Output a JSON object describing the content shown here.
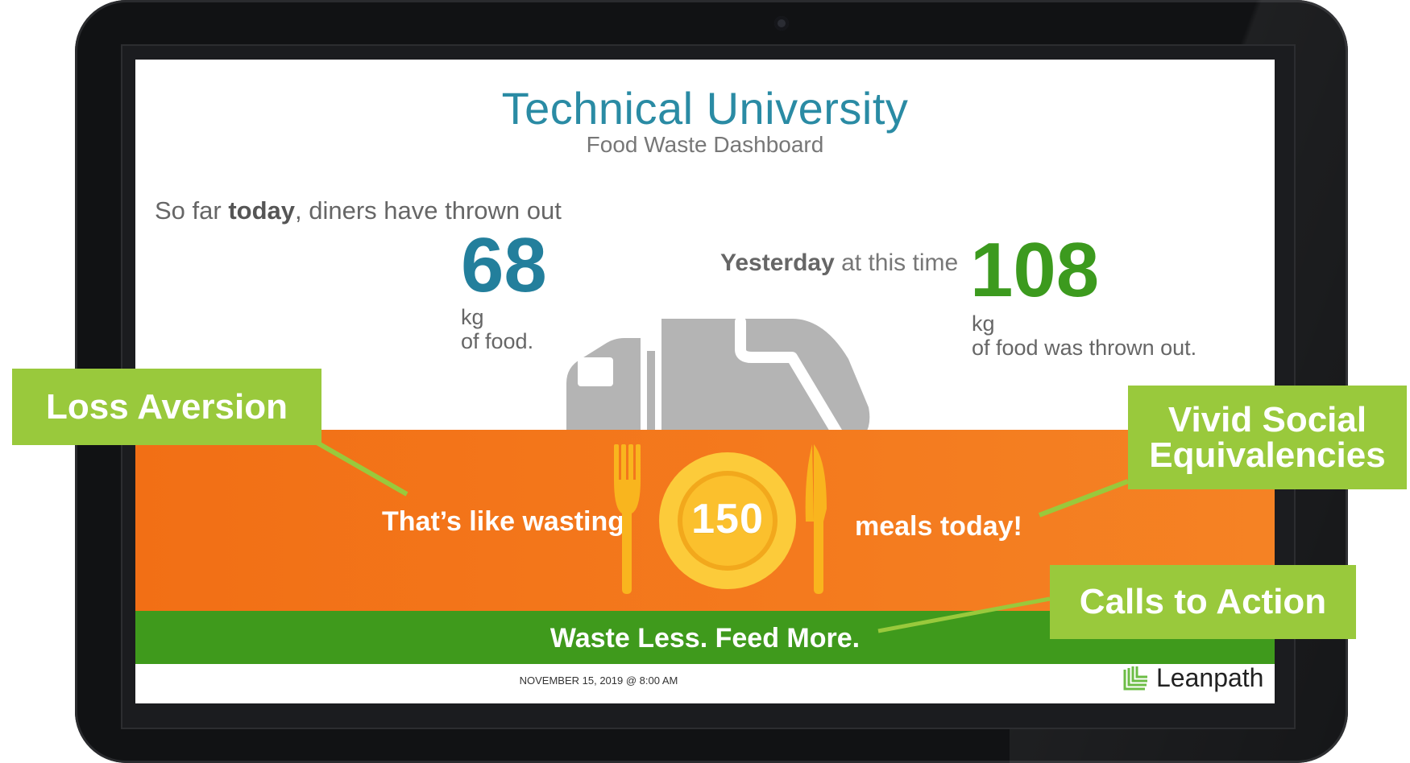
{
  "dashboard": {
    "title": "Technical University",
    "subtitle": "Food Waste Dashboard",
    "intro_prefix": "So far ",
    "intro_bold": "today",
    "intro_suffix": ", diners have thrown out",
    "today_value": "68",
    "today_unit": "kg",
    "today_unit_line2": "of food.",
    "yesterday_bold": "Yesterday",
    "yesterday_suffix": " at this time",
    "yesterday_value": "108",
    "yesterday_unit": "kg",
    "yesterday_unit_line2": "of food was thrown out.",
    "equivalency_prefix": "That’s like wasting",
    "meals_value": "150",
    "equivalency_suffix": "meals today!",
    "slogan": "Waste Less. Feed More.",
    "timestamp": "NOVEMBER 15, 2019 @ 8:00 AM",
    "brand": "Leanpath"
  },
  "callouts": {
    "loss_aversion": "Loss Aversion",
    "vivid_line1": "Vivid Social",
    "vivid_line2": "Equivalencies",
    "calls_to_action": "Calls to Action"
  },
  "colors": {
    "title_teal": "#2a8ba4",
    "today_blue": "#237f9c",
    "yesterday_green": "#3c9a1e",
    "orange_band": "#f26f15",
    "green_band": "#3f9a1c",
    "callout_green": "#99c93c",
    "plate_yellow": "#f9b51e",
    "truck_gray": "#b4b4b4"
  },
  "icons": [
    "garbage-truck-icon",
    "fork-icon",
    "plate-icon",
    "knife-icon",
    "leanpath-logo-icon",
    "camera-icon"
  ]
}
